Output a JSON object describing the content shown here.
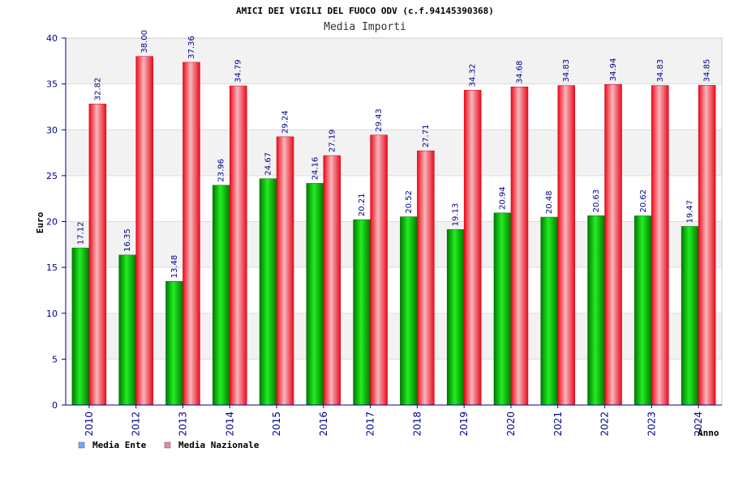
{
  "chart_data": {
    "type": "bar",
    "title": "AMICI DEI VIGILI DEL FUOCO ODV (c.f.94145390368)",
    "subtitle": "Media Importi",
    "xlabel": "Anno",
    "ylabel": "Euro",
    "ylim": [
      0,
      40
    ],
    "yticks": [
      0,
      5,
      10,
      15,
      20,
      25,
      30,
      35,
      40
    ],
    "categories": [
      "2010",
      "2012",
      "2013",
      "2014",
      "2015",
      "2016",
      "2017",
      "2018",
      "2019",
      "2020",
      "2021",
      "2022",
      "2023",
      "2024"
    ],
    "series": [
      {
        "name": "Media Ente",
        "values": [
          17.12,
          16.35,
          13.48,
          23.96,
          24.67,
          24.16,
          20.21,
          20.52,
          19.13,
          20.94,
          20.48,
          20.63,
          20.62,
          19.47
        ],
        "labels": [
          "17.12",
          "16.35",
          "13.48",
          "23.96",
          "24.67",
          "24.16",
          "20.21",
          "20.52",
          "19.13",
          "20.94",
          "20.48",
          "20.63",
          "20.62",
          "19.47"
        ]
      },
      {
        "name": "Media Nazionale",
        "values": [
          32.82,
          38.0,
          37.36,
          34.79,
          29.24,
          27.19,
          29.43,
          27.71,
          34.32,
          34.68,
          34.83,
          34.94,
          34.83,
          34.85
        ],
        "labels": [
          "32.82",
          "38.00",
          "37.36",
          "34.79",
          "29.24",
          "27.19",
          "29.43",
          "27.71",
          "34.32",
          "34.68",
          "34.83",
          "34.94",
          "34.83",
          "34.85"
        ]
      }
    ],
    "legend": {
      "placement": "bottom-left",
      "swatches": [
        "#6fa8ff",
        "#e58aa8"
      ]
    },
    "colors": {
      "ente": "#00bb00",
      "nazionale": "#ee1122",
      "band": "#f2f2f2",
      "axis": "#00008b"
    },
    "grid": true
  }
}
